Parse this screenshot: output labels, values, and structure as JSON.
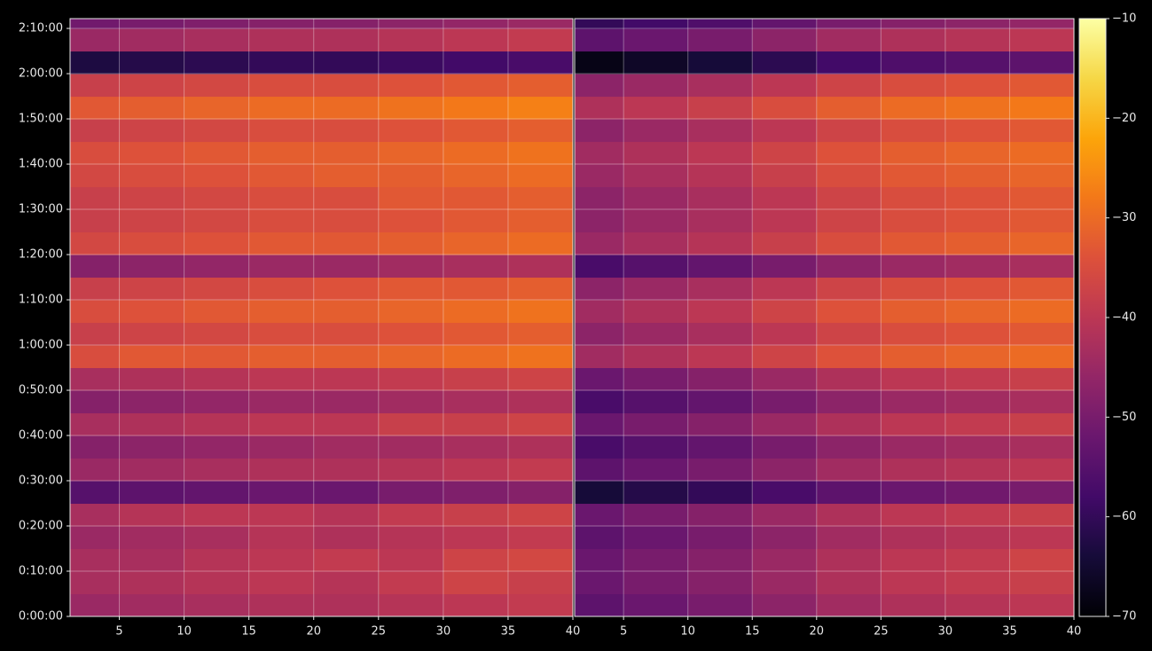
{
  "chart_data": [
    {
      "type": "heatmap",
      "colormap": "inferno",
      "grid": true,
      "x_bins": [
        1.2,
        5,
        10,
        15,
        20,
        25,
        30,
        35,
        40
      ],
      "y_bins": [
        0,
        300,
        600,
        900,
        1200,
        1500,
        1800,
        2100,
        2400,
        2700,
        3000,
        3300,
        3600,
        3900,
        4200,
        4500,
        4800,
        5100,
        5400,
        5700,
        6000,
        6300,
        6600,
        6900,
        7200,
        7500,
        7800,
        7930
      ],
      "xlim": [
        1.2,
        40
      ],
      "ylim": [
        0,
        7930
      ],
      "xticks": [
        5,
        10,
        15,
        20,
        25,
        30,
        35,
        40
      ],
      "yticks": [
        {
          "value": 0,
          "label": "0:00:00"
        },
        {
          "value": 600,
          "label": "0:10:00"
        },
        {
          "value": 1200,
          "label": "0:20:00"
        },
        {
          "value": 1800,
          "label": "0:30:00"
        },
        {
          "value": 2400,
          "label": "0:40:00"
        },
        {
          "value": 3000,
          "label": "0:50:00"
        },
        {
          "value": 3600,
          "label": "1:00:00"
        },
        {
          "value": 4200,
          "label": "1:10:00"
        },
        {
          "value": 4800,
          "label": "1:20:00"
        },
        {
          "value": 5400,
          "label": "1:30:00"
        },
        {
          "value": 6000,
          "label": "1:40:00"
        },
        {
          "value": 6600,
          "label": "1:50:00"
        },
        {
          "value": 7200,
          "label": "2:00:00"
        },
        {
          "value": 7800,
          "label": "2:10:00"
        }
      ],
      "values": [
        [
          -45,
          -44,
          -43,
          -42,
          -42,
          -41,
          -40,
          -39
        ],
        [
          -43,
          -42,
          -41,
          -40,
          -41,
          -39,
          -37,
          -38
        ],
        [
          -43,
          -43,
          -41,
          -40,
          -39,
          -40,
          -37,
          -36
        ],
        [
          -45,
          -44,
          -43,
          -41,
          -42,
          -41,
          -40,
          -39
        ],
        [
          -43,
          -41,
          -40,
          -40,
          -41,
          -39,
          -38,
          -37
        ],
        [
          -55,
          -54,
          -53,
          -52,
          -52,
          -50,
          -49,
          -48
        ],
        [
          -45,
          -44,
          -43,
          -42,
          -42,
          -41,
          -40,
          -39
        ],
        [
          -48,
          -47,
          -46,
          -45,
          -44,
          -44,
          -43,
          -42
        ],
        [
          -43,
          -42,
          -41,
          -40,
          -40,
          -38,
          -38,
          -37
        ],
        [
          -48,
          -47,
          -46,
          -45,
          -45,
          -44,
          -43,
          -42
        ],
        [
          -43,
          -42,
          -41,
          -40,
          -40,
          -39,
          -38,
          -37
        ],
        [
          -35,
          -33,
          -33,
          -32,
          -32,
          -31,
          -30,
          -29
        ],
        [
          -38,
          -37,
          -36,
          -35,
          -35,
          -34,
          -33,
          -32
        ],
        [
          -35,
          -34,
          -33,
          -32,
          -32,
          -31,
          -30,
          -29
        ],
        [
          -38,
          -37,
          -36,
          -35,
          -34,
          -33,
          -33,
          -32
        ],
        [
          -48,
          -47,
          -46,
          -45,
          -45,
          -44,
          -43,
          -42
        ],
        [
          -36,
          -35,
          -34,
          -33,
          -33,
          -32,
          -31,
          -30
        ],
        [
          -38,
          -37,
          -36,
          -35,
          -35,
          -34,
          -33,
          -32
        ],
        [
          -38,
          -37,
          -36,
          -35,
          -35,
          -33,
          -33,
          -32
        ],
        [
          -36,
          -35,
          -34,
          -33,
          -32,
          -32,
          -31,
          -30
        ],
        [
          -35,
          -34,
          -33,
          -32,
          -32,
          -31,
          -30,
          -29
        ],
        [
          -38,
          -37,
          -36,
          -35,
          -35,
          -34,
          -33,
          -32
        ],
        [
          -33,
          -32,
          -31,
          -30,
          -30,
          -29,
          -28,
          -27
        ],
        [
          -38,
          -37,
          -36,
          -35,
          -35,
          -34,
          -33,
          -32
        ],
        [
          -63,
          -62,
          -61,
          -60,
          -60,
          -59,
          -58,
          -57
        ],
        [
          -45,
          -44,
          -43,
          -42,
          -42,
          -41,
          -40,
          -39
        ],
        [
          -51,
          -50,
          -49,
          -48,
          -48,
          -47,
          -46,
          -45
        ]
      ]
    },
    {
      "type": "heatmap",
      "colormap": "inferno",
      "grid": true,
      "x_bins": [
        1.2,
        5,
        10,
        15,
        20,
        25,
        30,
        35,
        40
      ],
      "y_bins": [
        0,
        300,
        600,
        900,
        1200,
        1500,
        1800,
        2100,
        2400,
        2700,
        3000,
        3300,
        3600,
        3900,
        4200,
        4500,
        4800,
        5100,
        5400,
        5700,
        6000,
        6300,
        6600,
        6900,
        7200,
        7500,
        7800,
        7930
      ],
      "xlim": [
        1.2,
        40
      ],
      "ylim": [
        0,
        7930
      ],
      "xticks": [
        5,
        10,
        15,
        20,
        25,
        30,
        35,
        40
      ],
      "values": [
        [
          -54,
          -52,
          -50,
          -47,
          -44,
          -42,
          -41,
          -40
        ],
        [
          -52,
          -50,
          -48,
          -45,
          -42,
          -40,
          -39,
          -38
        ],
        [
          -52,
          -50,
          -48,
          -45,
          -42,
          -40,
          -39,
          -37
        ],
        [
          -54,
          -52,
          -50,
          -47,
          -44,
          -42,
          -41,
          -40
        ],
        [
          -52,
          -50,
          -48,
          -45,
          -42,
          -40,
          -39,
          -38
        ],
        [
          -64,
          -62,
          -60,
          -57,
          -54,
          -52,
          -51,
          -50
        ],
        [
          -54,
          -52,
          -50,
          -47,
          -44,
          -42,
          -41,
          -40
        ],
        [
          -57,
          -55,
          -53,
          -50,
          -47,
          -45,
          -44,
          -43
        ],
        [
          -52,
          -50,
          -48,
          -45,
          -42,
          -40,
          -39,
          -38
        ],
        [
          -57,
          -55,
          -53,
          -50,
          -47,
          -45,
          -44,
          -43
        ],
        [
          -52,
          -50,
          -48,
          -45,
          -42,
          -40,
          -39,
          -38
        ],
        [
          -44,
          -42,
          -40,
          -37,
          -34,
          -32,
          -31,
          -30
        ],
        [
          -47,
          -45,
          -43,
          -40,
          -37,
          -35,
          -34,
          -33
        ],
        [
          -44,
          -42,
          -40,
          -37,
          -34,
          -32,
          -31,
          -30
        ],
        [
          -47,
          -45,
          -43,
          -40,
          -37,
          -35,
          -34,
          -33
        ],
        [
          -57,
          -55,
          -53,
          -50,
          -47,
          -45,
          -44,
          -43
        ],
        [
          -45,
          -43,
          -41,
          -38,
          -35,
          -33,
          -32,
          -31
        ],
        [
          -47,
          -45,
          -43,
          -40,
          -37,
          -35,
          -34,
          -33
        ],
        [
          -47,
          -45,
          -43,
          -40,
          -37,
          -35,
          -34,
          -33
        ],
        [
          -45,
          -43,
          -41,
          -38,
          -35,
          -33,
          -32,
          -31
        ],
        [
          -44,
          -42,
          -40,
          -37,
          -34,
          -32,
          -31,
          -30
        ],
        [
          -47,
          -45,
          -43,
          -40,
          -37,
          -35,
          -34,
          -33
        ],
        [
          -42,
          -40,
          -38,
          -35,
          -32,
          -30,
          -29,
          -28
        ],
        [
          -47,
          -45,
          -43,
          -40,
          -37,
          -35,
          -34,
          -33
        ],
        [
          -68,
          -66,
          -64,
          -61,
          -58,
          -56,
          -55,
          -54
        ],
        [
          -54,
          -52,
          -50,
          -47,
          -44,
          -42,
          -41,
          -40
        ],
        [
          -60,
          -58,
          -56,
          -53,
          -50,
          -48,
          -47,
          -46
        ]
      ]
    }
  ],
  "colorbar": {
    "colormap": "inferno",
    "lim": [
      -70,
      -10
    ],
    "ticks": [
      {
        "value": -70,
        "label": "−70"
      },
      {
        "value": -60,
        "label": "−60"
      },
      {
        "value": -50,
        "label": "−50"
      },
      {
        "value": -40,
        "label": "−40"
      },
      {
        "value": -30,
        "label": "−30"
      },
      {
        "value": -20,
        "label": "−20"
      },
      {
        "value": -10,
        "label": "−10"
      }
    ]
  }
}
